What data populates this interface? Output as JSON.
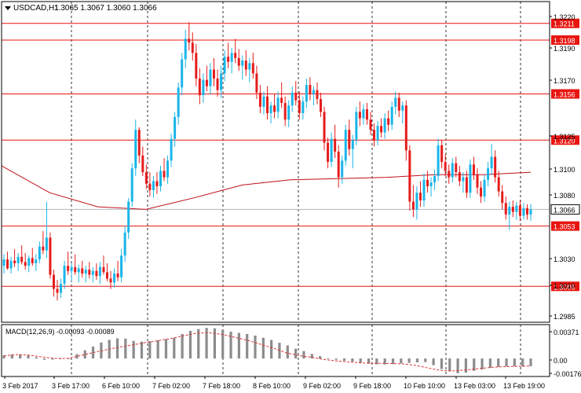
{
  "header": {
    "symbol_timeframe": "USDCAD,H1",
    "ohlc": "1.3065 1.3067 1.3060 1.3066"
  },
  "price_axis": {
    "ticks": [
      "1.3220",
      "1.3190",
      "1.3170",
      "1.3125",
      "1.3100",
      "1.3080",
      "1.3030",
      "1.3010",
      "1.2985"
    ]
  },
  "levels": [
    {
      "label": "1.3211",
      "value": 1.3211
    },
    {
      "label": "1.3198",
      "value": 1.3198
    },
    {
      "label": "1.3156",
      "value": 1.3156
    },
    {
      "label": "1.3120",
      "value": 1.312
    },
    {
      "label": "1.3053",
      "value": 1.3053
    },
    {
      "label": "1.3006",
      "value": 1.3006
    }
  ],
  "current_price": {
    "label": "1.3066",
    "value": 1.3066
  },
  "time_axis": {
    "labels": [
      "3 Feb 2017",
      "3 Feb 17:00",
      "6 Feb 10:00",
      "7 Feb 02:00",
      "7 Feb 18:00",
      "8 Feb 10:00",
      "9 Feb 02:00",
      "9 Feb 18:00",
      "10 Feb 10:00",
      "13 Feb 03:00",
      "13 Feb 19:00"
    ]
  },
  "macd": {
    "title": "MACD(12,26,9) -0.00093 -0.00089",
    "ticks": [
      "0.00371",
      "0.00",
      "-0.00176"
    ]
  },
  "colors": {
    "bull": "#19b5e8",
    "bear": "#e51c1c",
    "level": "#e8140f",
    "moving_average": "#c0101a",
    "grid": "#333333",
    "histogram": "#8c8c8c",
    "signal": "#e03030"
  },
  "chart_data": {
    "type": "candlestick",
    "timeframe": "H1",
    "candles": [
      {
        "o": 1.3022,
        "h": 1.3031,
        "l": 1.3016,
        "c": 1.3027
      },
      {
        "o": 1.3027,
        "h": 1.3033,
        "l": 1.3019,
        "c": 1.302
      },
      {
        "o": 1.302,
        "h": 1.3029,
        "l": 1.3016,
        "c": 1.3026
      },
      {
        "o": 1.3026,
        "h": 1.3035,
        "l": 1.3021,
        "c": 1.3024
      },
      {
        "o": 1.3024,
        "h": 1.3032,
        "l": 1.3018,
        "c": 1.3029
      },
      {
        "o": 1.3029,
        "h": 1.3038,
        "l": 1.3023,
        "c": 1.3025
      },
      {
        "o": 1.3025,
        "h": 1.3032,
        "l": 1.3019,
        "c": 1.3022
      },
      {
        "o": 1.3022,
        "h": 1.303,
        "l": 1.3017,
        "c": 1.3028
      },
      {
        "o": 1.3028,
        "h": 1.3036,
        "l": 1.3022,
        "c": 1.3024
      },
      {
        "o": 1.3024,
        "h": 1.3031,
        "l": 1.3018,
        "c": 1.3027
      },
      {
        "o": 1.3027,
        "h": 1.3041,
        "l": 1.3024,
        "c": 1.3037
      },
      {
        "o": 1.3037,
        "h": 1.3049,
        "l": 1.3031,
        "c": 1.3034
      },
      {
        "o": 1.3034,
        "h": 1.3072,
        "l": 1.3028,
        "c": 1.3044
      },
      {
        "o": 1.3044,
        "h": 1.3048,
        "l": 1.3012,
        "c": 1.3015
      },
      {
        "o": 1.3015,
        "h": 1.3019,
        "l": 1.2998,
        "c": 1.3004
      },
      {
        "o": 1.3004,
        "h": 1.3011,
        "l": 1.2995,
        "c": 1.3001
      },
      {
        "o": 1.3001,
        "h": 1.3012,
        "l": 1.2997,
        "c": 1.3008
      },
      {
        "o": 1.3008,
        "h": 1.3026,
        "l": 1.3004,
        "c": 1.3022
      },
      {
        "o": 1.3022,
        "h": 1.3033,
        "l": 1.3015,
        "c": 1.3018
      },
      {
        "o": 1.3018,
        "h": 1.3024,
        "l": 1.301,
        "c": 1.3021
      },
      {
        "o": 1.3021,
        "h": 1.3031,
        "l": 1.3015,
        "c": 1.3017
      },
      {
        "o": 1.3017,
        "h": 1.3023,
        "l": 1.3009,
        "c": 1.302
      },
      {
        "o": 1.302,
        "h": 1.3026,
        "l": 1.3013,
        "c": 1.3016
      },
      {
        "o": 1.3016,
        "h": 1.3022,
        "l": 1.3009,
        "c": 1.3019
      },
      {
        "o": 1.3019,
        "h": 1.3025,
        "l": 1.3012,
        "c": 1.3015
      },
      {
        "o": 1.3015,
        "h": 1.3021,
        "l": 1.3009,
        "c": 1.3018
      },
      {
        "o": 1.3018,
        "h": 1.3024,
        "l": 1.3011,
        "c": 1.3014
      },
      {
        "o": 1.3014,
        "h": 1.3025,
        "l": 1.3008,
        "c": 1.3021
      },
      {
        "o": 1.3021,
        "h": 1.303,
        "l": 1.3015,
        "c": 1.3017
      },
      {
        "o": 1.3017,
        "h": 1.3024,
        "l": 1.301,
        "c": 1.3012
      },
      {
        "o": 1.3012,
        "h": 1.3018,
        "l": 1.3004,
        "c": 1.3009
      },
      {
        "o": 1.3009,
        "h": 1.302,
        "l": 1.3005,
        "c": 1.3016
      },
      {
        "o": 1.3016,
        "h": 1.3026,
        "l": 1.301,
        "c": 1.3013
      },
      {
        "o": 1.3013,
        "h": 1.3035,
        "l": 1.3009,
        "c": 1.303
      },
      {
        "o": 1.303,
        "h": 1.3053,
        "l": 1.3025,
        "c": 1.3048
      },
      {
        "o": 1.3048,
        "h": 1.3075,
        "l": 1.3043,
        "c": 1.3072
      },
      {
        "o": 1.3072,
        "h": 1.3102,
        "l": 1.3068,
        "c": 1.3098
      },
      {
        "o": 1.3098,
        "h": 1.3136,
        "l": 1.3092,
        "c": 1.3128
      },
      {
        "o": 1.3128,
        "h": 1.313,
        "l": 1.3102,
        "c": 1.3108
      },
      {
        "o": 1.3108,
        "h": 1.3115,
        "l": 1.3092,
        "c": 1.3095
      },
      {
        "o": 1.3095,
        "h": 1.3101,
        "l": 1.3082,
        "c": 1.3086
      },
      {
        "o": 1.3086,
        "h": 1.3095,
        "l": 1.3076,
        "c": 1.3081
      },
      {
        "o": 1.3081,
        "h": 1.3092,
        "l": 1.3075,
        "c": 1.3088
      },
      {
        "o": 1.3088,
        "h": 1.3095,
        "l": 1.3078,
        "c": 1.3084
      },
      {
        "o": 1.3084,
        "h": 1.31,
        "l": 1.308,
        "c": 1.3096
      },
      {
        "o": 1.3096,
        "h": 1.3106,
        "l": 1.3088,
        "c": 1.3091
      },
      {
        "o": 1.3091,
        "h": 1.3108,
        "l": 1.3086,
        "c": 1.3104
      },
      {
        "o": 1.3104,
        "h": 1.3125,
        "l": 1.3099,
        "c": 1.3121
      },
      {
        "o": 1.3121,
        "h": 1.3142,
        "l": 1.3115,
        "c": 1.3138
      },
      {
        "o": 1.3138,
        "h": 1.3165,
        "l": 1.3132,
        "c": 1.3161
      },
      {
        "o": 1.3161,
        "h": 1.3188,
        "l": 1.3155,
        "c": 1.3183
      },
      {
        "o": 1.3183,
        "h": 1.3206,
        "l": 1.3176,
        "c": 1.3199
      },
      {
        "o": 1.3199,
        "h": 1.3212,
        "l": 1.319,
        "c": 1.3196
      },
      {
        "o": 1.3196,
        "h": 1.3204,
        "l": 1.3182,
        "c": 1.3188
      },
      {
        "o": 1.3188,
        "h": 1.3195,
        "l": 1.3162,
        "c": 1.3168
      },
      {
        "o": 1.3168,
        "h": 1.3176,
        "l": 1.3148,
        "c": 1.3155
      },
      {
        "o": 1.3155,
        "h": 1.3172,
        "l": 1.3149,
        "c": 1.3167
      },
      {
        "o": 1.3167,
        "h": 1.3178,
        "l": 1.3158,
        "c": 1.3162
      },
      {
        "o": 1.3162,
        "h": 1.318,
        "l": 1.3156,
        "c": 1.3175
      },
      {
        "o": 1.3175,
        "h": 1.3184,
        "l": 1.3162,
        "c": 1.3168
      },
      {
        "o": 1.3168,
        "h": 1.3175,
        "l": 1.3154,
        "c": 1.3159
      },
      {
        "o": 1.3159,
        "h": 1.3178,
        "l": 1.3153,
        "c": 1.3172
      },
      {
        "o": 1.3172,
        "h": 1.319,
        "l": 1.3166,
        "c": 1.3185
      },
      {
        "o": 1.3185,
        "h": 1.3196,
        "l": 1.3176,
        "c": 1.3181
      },
      {
        "o": 1.3181,
        "h": 1.3192,
        "l": 1.3172,
        "c": 1.3188
      },
      {
        "o": 1.3188,
        "h": 1.3199,
        "l": 1.318,
        "c": 1.3184
      },
      {
        "o": 1.3184,
        "h": 1.3191,
        "l": 1.3174,
        "c": 1.3178
      },
      {
        "o": 1.3178,
        "h": 1.3186,
        "l": 1.3167,
        "c": 1.3182
      },
      {
        "o": 1.3182,
        "h": 1.319,
        "l": 1.317,
        "c": 1.3175
      },
      {
        "o": 1.3175,
        "h": 1.3184,
        "l": 1.3165,
        "c": 1.318
      },
      {
        "o": 1.318,
        "h": 1.3188,
        "l": 1.3168,
        "c": 1.3172
      },
      {
        "o": 1.3172,
        "h": 1.3178,
        "l": 1.3152,
        "c": 1.3157
      },
      {
        "o": 1.3157,
        "h": 1.3163,
        "l": 1.3141,
        "c": 1.3146
      },
      {
        "o": 1.3146,
        "h": 1.3158,
        "l": 1.314,
        "c": 1.3154
      },
      {
        "o": 1.3154,
        "h": 1.3162,
        "l": 1.3136,
        "c": 1.3141
      },
      {
        "o": 1.3141,
        "h": 1.315,
        "l": 1.3133,
        "c": 1.3147
      },
      {
        "o": 1.3147,
        "h": 1.3156,
        "l": 1.3137,
        "c": 1.3142
      },
      {
        "o": 1.3142,
        "h": 1.3158,
        "l": 1.3137,
        "c": 1.3153
      },
      {
        "o": 1.3153,
        "h": 1.3165,
        "l": 1.3145,
        "c": 1.3149
      },
      {
        "o": 1.3149,
        "h": 1.3154,
        "l": 1.3131,
        "c": 1.3136
      },
      {
        "o": 1.3136,
        "h": 1.3151,
        "l": 1.313,
        "c": 1.3147
      },
      {
        "o": 1.3147,
        "h": 1.3162,
        "l": 1.3142,
        "c": 1.3157
      },
      {
        "o": 1.3157,
        "h": 1.3166,
        "l": 1.3147,
        "c": 1.3151
      },
      {
        "o": 1.3151,
        "h": 1.3158,
        "l": 1.3136,
        "c": 1.3141
      },
      {
        "o": 1.3141,
        "h": 1.3154,
        "l": 1.3136,
        "c": 1.315
      },
      {
        "o": 1.315,
        "h": 1.3168,
        "l": 1.3145,
        "c": 1.3163
      },
      {
        "o": 1.3163,
        "h": 1.3169,
        "l": 1.3151,
        "c": 1.3156
      },
      {
        "o": 1.3156,
        "h": 1.3162,
        "l": 1.3147,
        "c": 1.3159
      },
      {
        "o": 1.3159,
        "h": 1.3165,
        "l": 1.3148,
        "c": 1.3152
      },
      {
        "o": 1.3152,
        "h": 1.3157,
        "l": 1.3138,
        "c": 1.3142
      },
      {
        "o": 1.3142,
        "h": 1.3146,
        "l": 1.3112,
        "c": 1.3118
      },
      {
        "o": 1.3118,
        "h": 1.3122,
        "l": 1.3098,
        "c": 1.3103
      },
      {
        "o": 1.3103,
        "h": 1.3126,
        "l": 1.3099,
        "c": 1.3121
      },
      {
        "o": 1.3121,
        "h": 1.3132,
        "l": 1.3106,
        "c": 1.3111
      },
      {
        "o": 1.3111,
        "h": 1.3116,
        "l": 1.3083,
        "c": 1.3091
      },
      {
        "o": 1.3091,
        "h": 1.3108,
        "l": 1.3086,
        "c": 1.3104
      },
      {
        "o": 1.3104,
        "h": 1.3132,
        "l": 1.31,
        "c": 1.3128
      },
      {
        "o": 1.3128,
        "h": 1.3136,
        "l": 1.3108,
        "c": 1.3113
      },
      {
        "o": 1.3113,
        "h": 1.3124,
        "l": 1.3098,
        "c": 1.312
      },
      {
        "o": 1.312,
        "h": 1.3146,
        "l": 1.3116,
        "c": 1.3142
      },
      {
        "o": 1.3142,
        "h": 1.315,
        "l": 1.3131,
        "c": 1.3137
      },
      {
        "o": 1.3137,
        "h": 1.3148,
        "l": 1.3132,
        "c": 1.3144
      },
      {
        "o": 1.3144,
        "h": 1.3149,
        "l": 1.3132,
        "c": 1.3136
      },
      {
        "o": 1.3136,
        "h": 1.3142,
        "l": 1.3124,
        "c": 1.3128
      },
      {
        "o": 1.3128,
        "h": 1.3133,
        "l": 1.3115,
        "c": 1.312
      },
      {
        "o": 1.312,
        "h": 1.3135,
        "l": 1.3116,
        "c": 1.3131
      },
      {
        "o": 1.3131,
        "h": 1.3137,
        "l": 1.3122,
        "c": 1.3126
      },
      {
        "o": 1.3126,
        "h": 1.3141,
        "l": 1.3121,
        "c": 1.3137
      },
      {
        "o": 1.3137,
        "h": 1.3143,
        "l": 1.3127,
        "c": 1.3132
      },
      {
        "o": 1.3132,
        "h": 1.315,
        "l": 1.3128,
        "c": 1.3146
      },
      {
        "o": 1.3146,
        "h": 1.3158,
        "l": 1.314,
        "c": 1.3153
      },
      {
        "o": 1.3153,
        "h": 1.3157,
        "l": 1.3138,
        "c": 1.3143
      },
      {
        "o": 1.3143,
        "h": 1.315,
        "l": 1.3133,
        "c": 1.3147
      },
      {
        "o": 1.3147,
        "h": 1.3151,
        "l": 1.3104,
        "c": 1.3112
      },
      {
        "o": 1.3112,
        "h": 1.3116,
        "l": 1.3065,
        "c": 1.3072
      },
      {
        "o": 1.3072,
        "h": 1.3085,
        "l": 1.306,
        "c": 1.3066
      },
      {
        "o": 1.3066,
        "h": 1.3084,
        "l": 1.3058,
        "c": 1.3079
      },
      {
        "o": 1.3079,
        "h": 1.3088,
        "l": 1.3068,
        "c": 1.3073
      },
      {
        "o": 1.3073,
        "h": 1.3094,
        "l": 1.3068,
        "c": 1.3089
      },
      {
        "o": 1.3089,
        "h": 1.3096,
        "l": 1.3079,
        "c": 1.3084
      },
      {
        "o": 1.3084,
        "h": 1.3091,
        "l": 1.3076,
        "c": 1.3087
      },
      {
        "o": 1.3087,
        "h": 1.3097,
        "l": 1.3081,
        "c": 1.3092
      },
      {
        "o": 1.3092,
        "h": 1.3121,
        "l": 1.3088,
        "c": 1.3116
      },
      {
        "o": 1.3116,
        "h": 1.312,
        "l": 1.3098,
        "c": 1.3103
      },
      {
        "o": 1.3103,
        "h": 1.3109,
        "l": 1.3092,
        "c": 1.3096
      },
      {
        "o": 1.3096,
        "h": 1.3101,
        "l": 1.3086,
        "c": 1.3091
      },
      {
        "o": 1.3091,
        "h": 1.3106,
        "l": 1.3087,
        "c": 1.3102
      },
      {
        "o": 1.3102,
        "h": 1.3107,
        "l": 1.3091,
        "c": 1.3095
      },
      {
        "o": 1.3095,
        "h": 1.31,
        "l": 1.3084,
        "c": 1.3088
      },
      {
        "o": 1.3088,
        "h": 1.3095,
        "l": 1.3079,
        "c": 1.3091
      },
      {
        "o": 1.3091,
        "h": 1.3096,
        "l": 1.3075,
        "c": 1.3079
      },
      {
        "o": 1.3079,
        "h": 1.3105,
        "l": 1.3075,
        "c": 1.3101
      },
      {
        "o": 1.3101,
        "h": 1.3107,
        "l": 1.3089,
        "c": 1.3093
      },
      {
        "o": 1.3093,
        "h": 1.3098,
        "l": 1.3078,
        "c": 1.3083
      },
      {
        "o": 1.3083,
        "h": 1.3088,
        "l": 1.3071,
        "c": 1.3076
      },
      {
        "o": 1.3076,
        "h": 1.3093,
        "l": 1.3072,
        "c": 1.3089
      },
      {
        "o": 1.3089,
        "h": 1.3103,
        "l": 1.3084,
        "c": 1.3098
      },
      {
        "o": 1.3098,
        "h": 1.3117,
        "l": 1.3093,
        "c": 1.3107
      },
      {
        "o": 1.3107,
        "h": 1.3112,
        "l": 1.3087,
        "c": 1.3091
      },
      {
        "o": 1.3091,
        "h": 1.3096,
        "l": 1.3076,
        "c": 1.308
      },
      {
        "o": 1.308,
        "h": 1.3085,
        "l": 1.3066,
        "c": 1.3071
      },
      {
        "o": 1.3071,
        "h": 1.3076,
        "l": 1.3058,
        "c": 1.3062
      },
      {
        "o": 1.3062,
        "h": 1.3072,
        "l": 1.305,
        "c": 1.3068
      },
      {
        "o": 1.3068,
        "h": 1.3073,
        "l": 1.306,
        "c": 1.3064
      },
      {
        "o": 1.3064,
        "h": 1.3072,
        "l": 1.3058,
        "c": 1.3069
      },
      {
        "o": 1.3069,
        "h": 1.3073,
        "l": 1.3057,
        "c": 1.3061
      },
      {
        "o": 1.3061,
        "h": 1.3071,
        "l": 1.3058,
        "c": 1.3067
      },
      {
        "o": 1.3067,
        "h": 1.307,
        "l": 1.3058,
        "c": 1.3062
      },
      {
        "o": 1.3062,
        "h": 1.307,
        "l": 1.3057,
        "c": 1.3066
      }
    ],
    "moving_average": [
      1.31,
      1.3079,
      1.3068,
      1.3066,
      1.3075,
      1.3085,
      1.3089,
      1.309,
      1.3091,
      1.3093,
      1.3093,
      1.3095
    ],
    "macd_histogram": [
      0.00038,
      0.00049,
      0.00048,
      0.00039,
      0.00016,
      -0.00015,
      -0.00013,
      -7e-05,
      0.0,
      0.00052,
      0.00098,
      0.00143,
      0.00191,
      0.00223,
      0.0024,
      0.00237,
      0.0021,
      0.00202,
      0.00207,
      0.00218,
      0.00232,
      0.00248,
      0.00293,
      0.00331,
      0.00352,
      0.00366,
      0.00361,
      0.00342,
      0.00321,
      0.00306,
      0.00293,
      0.00274,
      0.00248,
      0.00222,
      0.00188,
      0.00156,
      0.00117,
      0.00089,
      0.00055,
      0.00028,
      3e-05,
      -0.00014,
      -0.00027,
      -0.00037,
      -0.00051,
      -0.00063,
      -0.0007,
      -0.00071,
      -0.00067,
      -0.00059,
      -0.00052,
      -0.00046,
      -0.00043,
      -0.0008,
      -0.00126,
      -0.00154,
      -0.00176,
      -0.0017,
      -0.00148,
      -0.00131,
      -0.00112,
      -0.00101,
      -0.00096,
      -0.00093,
      -0.00095,
      -0.00093
    ],
    "macd_signal": [
      0.00032,
      0.00047,
      0.0004,
      0.00018,
      1e-05,
      1e-05,
      0.00037,
      0.00072,
      0.00105,
      0.00137,
      0.00163,
      0.00189,
      0.00213,
      0.00239,
      0.00273,
      0.00303,
      0.00308,
      0.00287,
      0.00252,
      0.00216,
      0.00168,
      0.00122,
      0.00067,
      0.00034,
      0.00013,
      -0.00013,
      -0.00031,
      -0.00043,
      -0.00054,
      -0.00057,
      -0.00059,
      -0.00064,
      -0.00081,
      -0.00114,
      -0.00143,
      -0.00148,
      -0.00136,
      -0.0012,
      -0.00105,
      -0.00097,
      -0.00094,
      -0.00089
    ],
    "y_range": [
      1.2978,
      1.3228
    ],
    "macd_range": [
      -0.00215,
      0.00405
    ],
    "grid": "vertical dotted at time labels",
    "chart_bg": "#ffffff"
  }
}
